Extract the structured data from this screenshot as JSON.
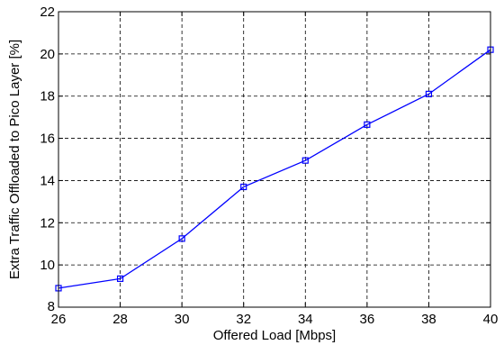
{
  "chart_data": {
    "type": "line",
    "title": "",
    "xlabel": "Offered Load [Mbps]",
    "ylabel": "Extra Traffic Offloaded to Pico Layer [%]",
    "xlim": [
      26,
      40
    ],
    "ylim": [
      8,
      22
    ],
    "xticks": [
      26,
      28,
      30,
      32,
      34,
      36,
      38,
      40
    ],
    "yticks": [
      8,
      10,
      12,
      14,
      16,
      18,
      20,
      22
    ],
    "grid": true,
    "grid_style": "dashed",
    "marker": "square",
    "series": [
      {
        "color": "#0000ff",
        "x": [
          26,
          28,
          30,
          32,
          34,
          36,
          38,
          40
        ],
        "y": [
          8.9,
          9.35,
          11.25,
          13.7,
          14.95,
          16.65,
          18.1,
          20.2
        ]
      }
    ]
  }
}
